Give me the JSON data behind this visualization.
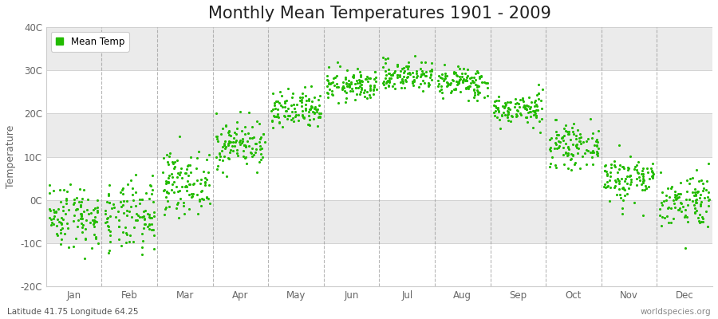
{
  "title": "Monthly Mean Temperatures 1901 - 2009",
  "ylabel": "Temperature",
  "xlabel_labels": [
    "Jan",
    "Feb",
    "Mar",
    "Apr",
    "May",
    "Jun",
    "Jul",
    "Aug",
    "Sep",
    "Oct",
    "Nov",
    "Dec"
  ],
  "bottom_left_text": "Latitude 41.75 Longitude 64.25",
  "bottom_right_text": "worldspecies.org",
  "legend_label": "Mean Temp",
  "dot_color": "#22bb00",
  "background_color": "#ffffff",
  "band_color_a": "#ebebeb",
  "band_color_b": "#ffffff",
  "ylim": [
    -20,
    40
  ],
  "yticks": [
    -20,
    -10,
    0,
    10,
    20,
    30,
    40
  ],
  "ytick_labels": [
    "-20C",
    "-10C",
    "0C",
    "10C",
    "20C",
    "30C",
    "40C"
  ],
  "n_years": 109,
  "monthly_means": [
    -3.5,
    -4.2,
    4.0,
    13.0,
    20.5,
    26.5,
    28.8,
    27.2,
    21.0,
    12.5,
    5.0,
    0.0
  ],
  "monthly_stds": [
    3.8,
    4.2,
    3.5,
    2.8,
    2.3,
    1.8,
    1.8,
    1.8,
    1.8,
    2.3,
    2.8,
    3.2
  ],
  "title_fontsize": 15,
  "label_fontsize": 9,
  "tick_fontsize": 8.5,
  "dot_size": 5,
  "dot_alpha": 1.0,
  "vline_color": "#999999",
  "spine_color": "#cccccc",
  "tick_color": "#666666"
}
